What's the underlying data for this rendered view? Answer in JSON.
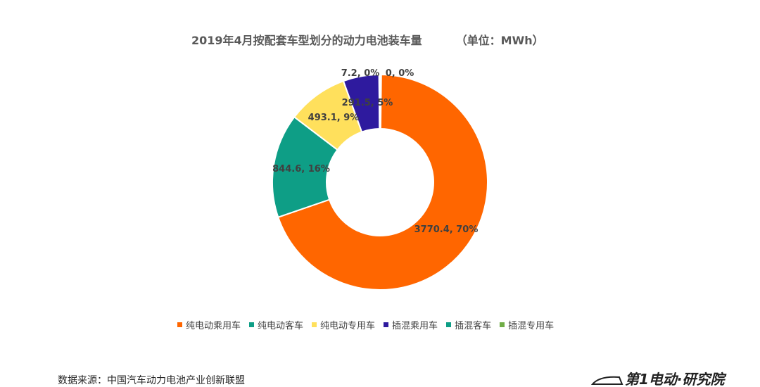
{
  "title": "2019年4月按配套车型划分的动力电池装车量",
  "unit": "（单位：MWh）",
  "source": "数据来源：中国汽车动力电池产业创新联盟",
  "logo_text": "第1电动·研究院",
  "chart_data": {
    "type": "pie",
    "variant": "donut",
    "title": "2019年4月按配套车型划分的动力电池装车量",
    "unit": "MWh",
    "legend_position": "bottom",
    "series": [
      {
        "name": "纯电动乘用车",
        "value": 3770.4,
        "percent": 70,
        "label": "3770.4, 70%",
        "color": "#FF6600"
      },
      {
        "name": "纯电动客车",
        "value": 844.6,
        "percent": 16,
        "label": "844.6, 16%",
        "color": "#0E9E86"
      },
      {
        "name": "纯电动专用车",
        "value": 493.1,
        "percent": 9,
        "label": "493.1, 9%",
        "color": "#FFE05C"
      },
      {
        "name": "插混乘用车",
        "value": 291.5,
        "percent": 5,
        "label": "291.5, 5%",
        "color": "#2E1A9E"
      },
      {
        "name": "插混客车",
        "value": 7.2,
        "percent": 0,
        "label": "7.2, 0%",
        "color": "#0E9E86"
      },
      {
        "name": "插混专用车",
        "value": 0,
        "percent": 0,
        "label": "0, 0%",
        "color": "#70AD47"
      }
    ]
  }
}
